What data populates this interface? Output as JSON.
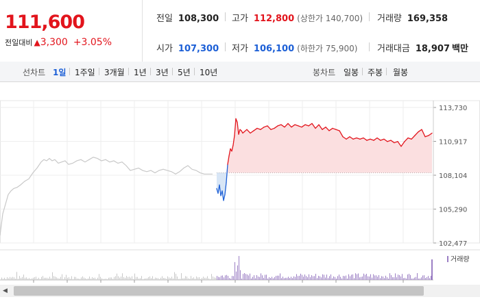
{
  "quote": {
    "current_price": "111,600",
    "change_label": "전일대비",
    "change_arrow": "▲",
    "change_value": "3,300",
    "change_pct": "+3.05%"
  },
  "stats": {
    "prev_close_label": "전일",
    "prev_close": "108,300",
    "high_label": "고가",
    "high": "112,800",
    "upper_limit": "(상한가 140,700)",
    "volume_label": "거래량",
    "volume": "169,358",
    "open_label": "시가",
    "open": "107,300",
    "low_label": "저가",
    "low": "106,100",
    "lower_limit": "(하한가 75,900)",
    "value_label": "거래대금",
    "value": "18,907",
    "value_unit": "백만"
  },
  "tabs": {
    "line_label": "선차트",
    "line": [
      "1일",
      "1주일",
      "3개월",
      "1년",
      "3년",
      "5년",
      "10년"
    ],
    "candle_label": "봉차트",
    "candle": [
      "일봉",
      "주봉",
      "월봉"
    ]
  },
  "colors": {
    "up": "#e2141c",
    "down": "#1c5fd6",
    "pre_market_line": "#c8c8c8",
    "up_fill": "#fbdfe0",
    "down_fill": "#d8e6f6",
    "volume_bar": "#9b7ec4"
  },
  "chart_data": {
    "type": "line",
    "title": "",
    "ylim": [
      102477,
      113730
    ],
    "y_ticks": [
      113730,
      110917,
      108104,
      105290,
      102477
    ],
    "y_tick_labels": [
      "113,730",
      "110,917",
      "108,104",
      "105,290",
      "102,477"
    ],
    "reference_line": 108300,
    "grid": true,
    "series": [
      {
        "segment": "pre-market",
        "x": [
          0,
          4,
          8,
          12,
          16,
          20,
          25,
          30,
          36,
          42,
          48,
          54,
          60,
          64,
          68,
          72,
          76,
          80,
          85,
          90,
          95,
          100,
          106,
          112,
          118,
          124,
          130,
          136,
          142,
          148,
          154,
          160,
          166,
          172,
          178,
          184,
          190,
          196,
          202,
          208,
          214,
          220,
          226,
          232,
          238,
          244,
          250,
          256,
          262,
          268,
          274,
          280,
          286,
          292,
          298,
          304,
          310
        ],
        "values": [
          103100,
          104900,
          105700,
          106500,
          106800,
          107000,
          107100,
          107300,
          107600,
          107800,
          108300,
          108700,
          109200,
          109400,
          109300,
          109500,
          109300,
          109400,
          109100,
          109200,
          109300,
          109000,
          109100,
          109300,
          109400,
          109200,
          109400,
          109600,
          109500,
          109300,
          109400,
          109200,
          109300,
          109100,
          109200,
          108900,
          108500,
          108600,
          108700,
          108500,
          108400,
          108500,
          108300,
          108500,
          108600,
          108500,
          108400,
          108200,
          108400,
          108700,
          108900,
          108600,
          108500,
          108300,
          108200,
          108200,
          108200
        ]
      },
      {
        "segment": "session",
        "x": [
          316,
          318,
          320,
          322,
          324,
          326,
          328,
          330,
          332,
          334,
          336,
          338,
          340,
          342,
          344,
          346,
          348,
          350,
          352,
          354,
          356,
          360,
          365,
          370,
          375,
          380,
          385,
          390,
          395,
          400,
          405,
          410,
          415,
          420,
          425,
          430,
          435,
          440,
          445,
          450,
          455,
          460,
          465,
          470,
          475,
          480,
          485,
          490,
          495,
          500,
          505,
          510,
          515,
          520,
          525,
          530,
          535,
          540,
          545,
          550,
          555,
          560,
          565,
          570,
          575,
          580,
          585,
          590,
          595,
          600,
          605,
          610,
          615,
          620,
          625,
          630
        ],
        "values": [
          107000,
          106600,
          107300,
          106400,
          106800,
          106000,
          106500,
          107500,
          109000,
          109700,
          110300,
          110100,
          110600,
          111400,
          112800,
          112500,
          111500,
          111900,
          111800,
          111600,
          111700,
          111900,
          111600,
          111800,
          112000,
          111900,
          112100,
          112200,
          111900,
          112000,
          112200,
          112300,
          112100,
          112400,
          112100,
          112300,
          112200,
          112100,
          112300,
          112200,
          112400,
          112000,
          112300,
          111900,
          112100,
          111800,
          112000,
          111900,
          111800,
          111300,
          111100,
          111300,
          111100,
          111200,
          111100,
          111200,
          111000,
          111100,
          111000,
          111200,
          111000,
          111100,
          110900,
          111000,
          110800,
          110900,
          110500,
          110900,
          111200,
          111100,
          111400,
          111700,
          111900,
          111300,
          111400,
          111600
        ]
      }
    ],
    "volume_legend": "거래량"
  }
}
